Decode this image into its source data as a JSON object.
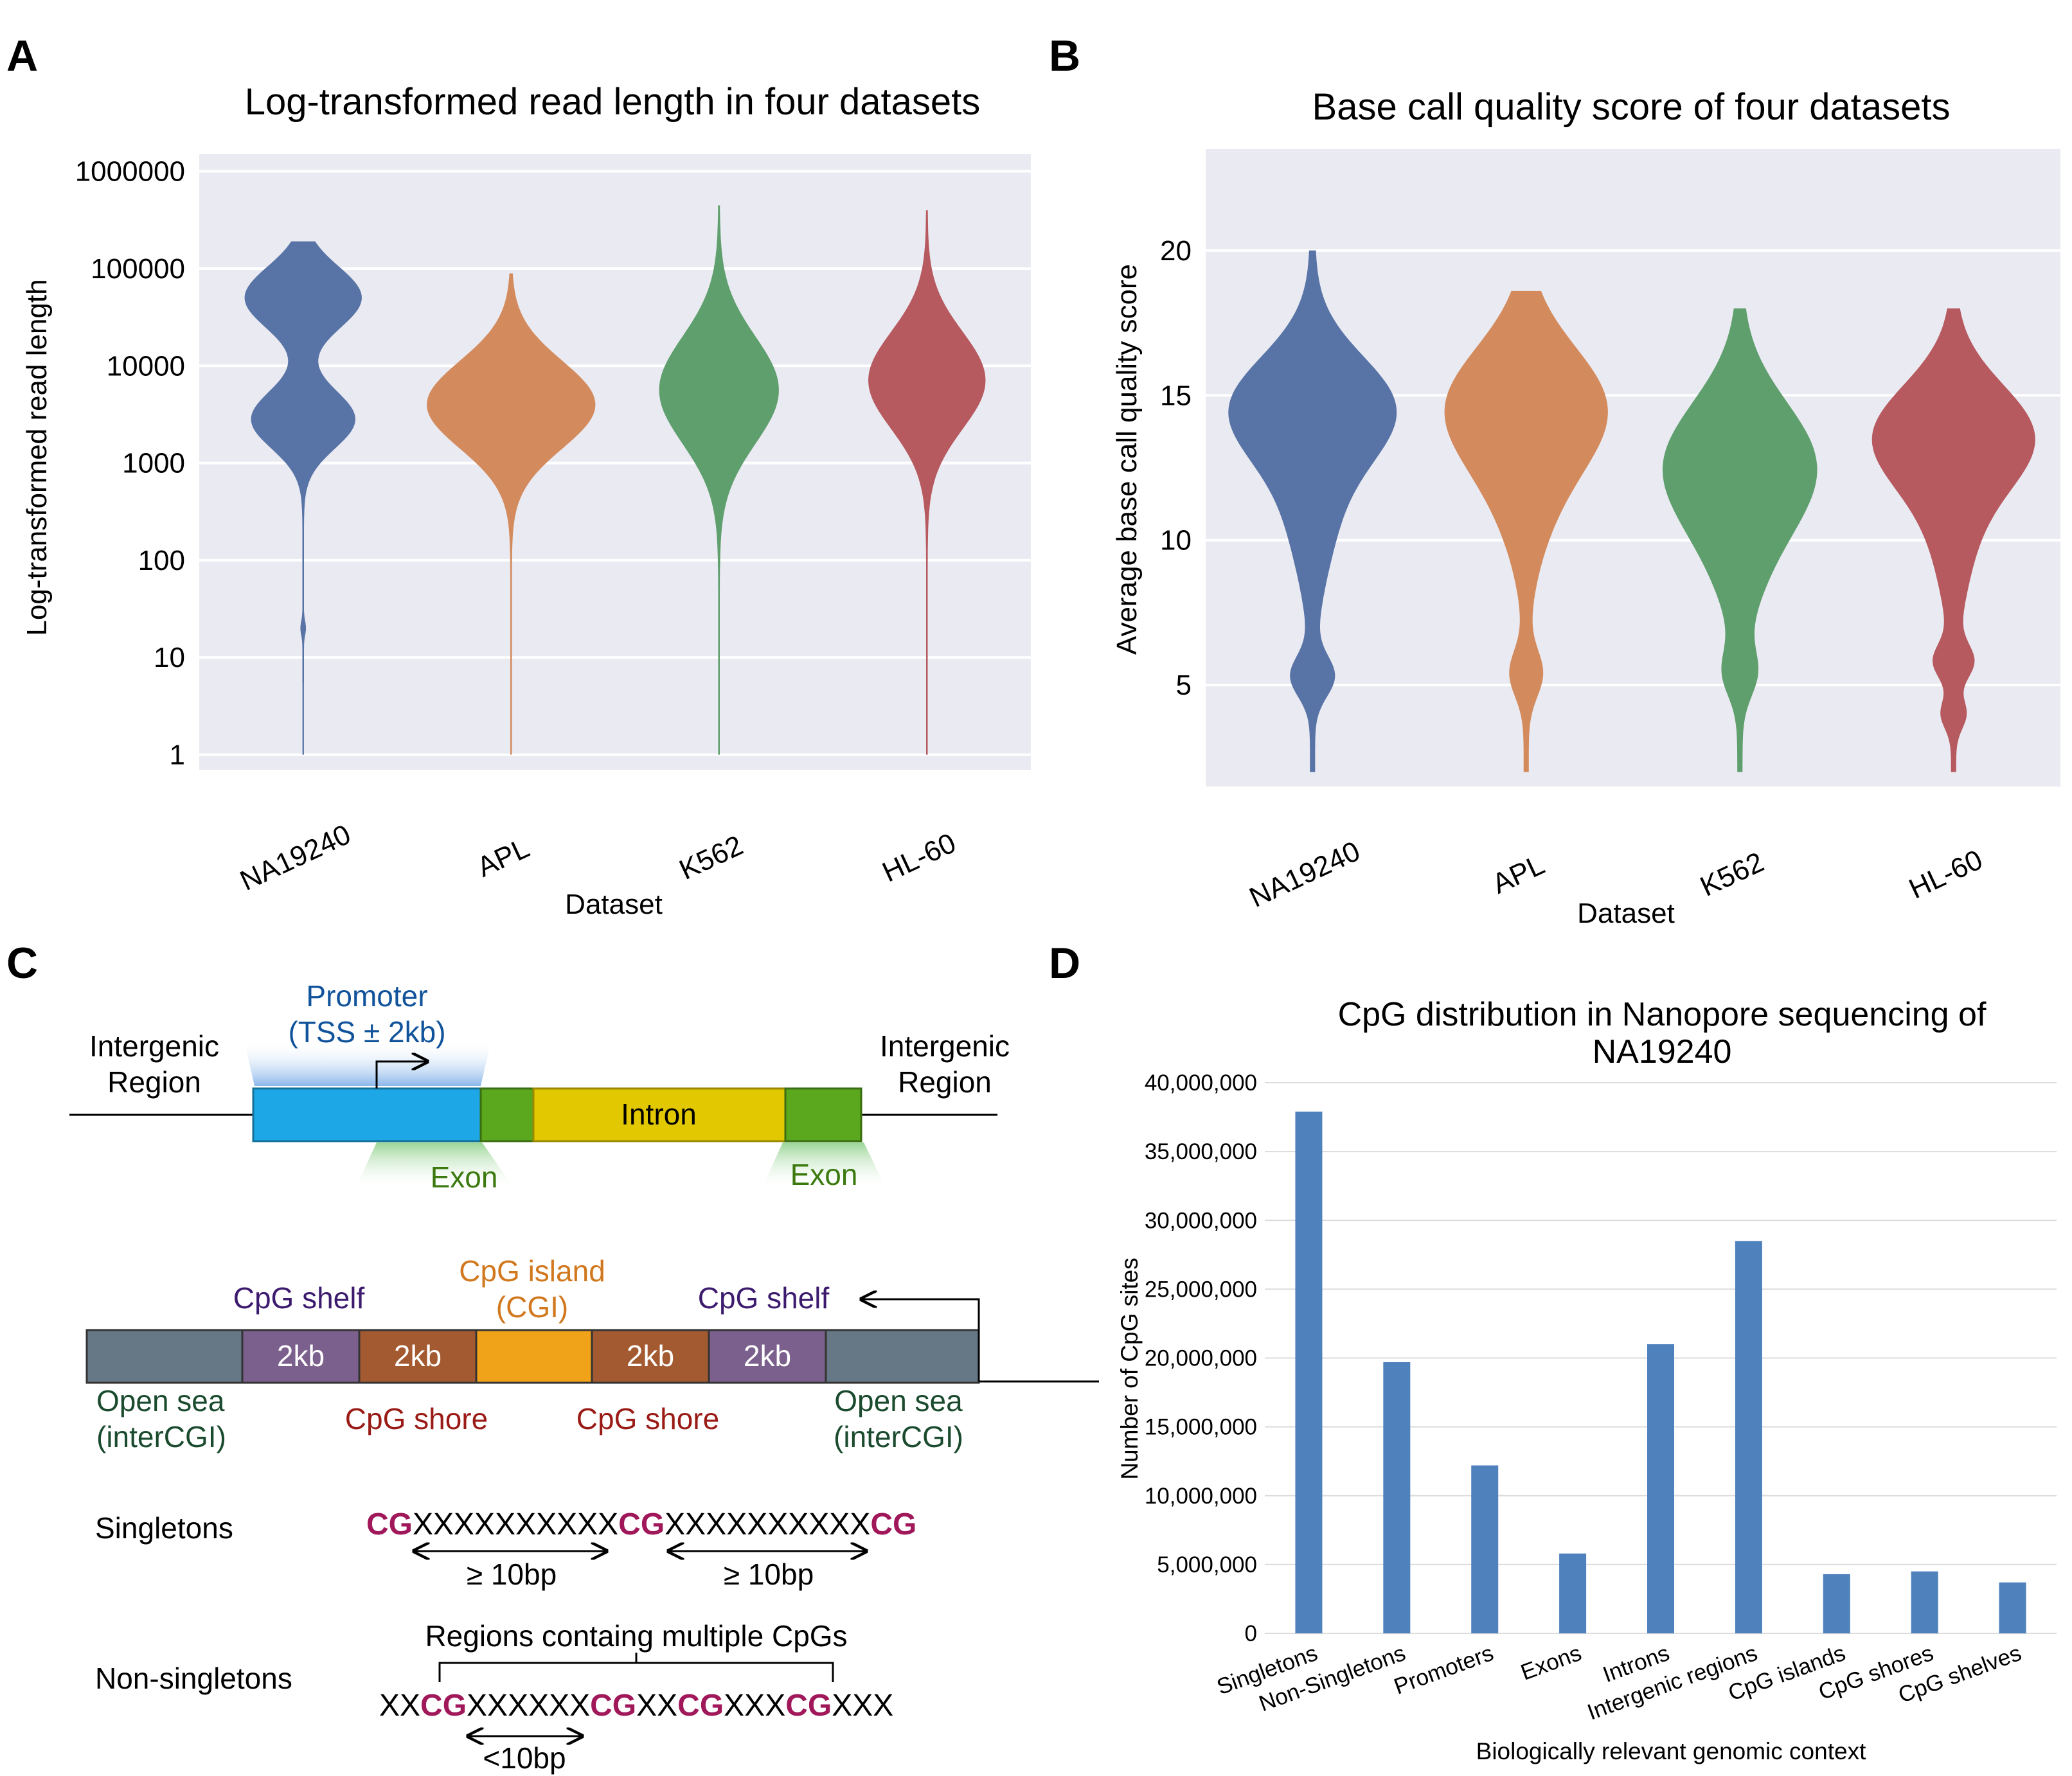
{
  "colors": {
    "blue": "#5874a6",
    "orange": "#d38b5d",
    "green": "#5f9f6d",
    "red": "#b65a5f",
    "panel_bg": "#eaeaf2",
    "bar": "#4f81bd",
    "promoter_blue": "#1ea7e6",
    "exon_green": "#5ba71e",
    "intron_yellow": "#e2c800",
    "sea_gray": "#667786",
    "shelf_purple": "#7b5f8c",
    "shore_brown": "#a35a30",
    "island_orange": "#f0a218",
    "cg_magenta": "#a0175a",
    "label_blue": "#10539b",
    "label_green": "#3c7a10",
    "label_orange": "#d1781e",
    "label_purple": "#3c1a6e",
    "label_darkred": "#9a1b16",
    "label_darkgreen": "#1b4b2e"
  },
  "panels": {
    "a": "A",
    "b": "B",
    "c": "C",
    "d": "D"
  },
  "chart_data": [
    {
      "type": "violin",
      "title": "Log-transformed read length in four datasets",
      "xlabel": "Dataset",
      "ylabel": "Log-transformed read length",
      "scale": "log10",
      "ylim": [
        0.7,
        1500000
      ],
      "yticks": [
        "1",
        "10",
        "100",
        "1000",
        "10000",
        "100000",
        "1000000"
      ],
      "categories": [
        "NA19240",
        "APL",
        "K562",
        "HL-60"
      ],
      "grid": true,
      "series": [
        {
          "category": "NA19240",
          "min": 1,
          "max": 190000,
          "modes": [
            3000,
            55000
          ]
        },
        {
          "category": "APL",
          "min": 1,
          "max": 90000,
          "modes": [
            4000
          ]
        },
        {
          "category": "K562",
          "min": 1,
          "max": 450000,
          "modes": [
            5000
          ]
        },
        {
          "category": "HL-60",
          "min": 1,
          "max": 400000,
          "modes": [
            5000
          ]
        }
      ]
    },
    {
      "type": "violin",
      "title": "Base call quality score of four datasets",
      "xlabel": "Dataset",
      "ylabel": "Average base call quality score",
      "ylim": [
        1.5,
        23.5
      ],
      "yticks": [
        "5",
        "10",
        "15",
        "20"
      ],
      "categories": [
        "NA19240",
        "APL",
        "K562",
        "HL-60"
      ],
      "grid": true,
      "series": [
        {
          "category": "NA19240",
          "min": 2,
          "max": 20,
          "modes": [
            14.5,
            5.5
          ]
        },
        {
          "category": "APL",
          "min": 2,
          "max": 18.5,
          "modes": [
            14.5,
            5.5
          ]
        },
        {
          "category": "K562",
          "min": 2,
          "max": 18,
          "modes": [
            12.5,
            5.5
          ]
        },
        {
          "category": "HL-60",
          "min": 2,
          "max": 18,
          "modes": [
            13.5,
            5.5,
            4
          ]
        }
      ]
    },
    {
      "type": "bar",
      "title": "CpG distribution in Nanopore sequencing of NA19240",
      "title_lines": [
        "CpG distribution in Nanopore sequencing of",
        "NA19240"
      ],
      "xlabel": "Biologically relevant genomic context",
      "ylabel": "Number of CpG sites",
      "ylim": [
        0,
        40000000
      ],
      "yticks": [
        "0",
        "5,000,000",
        "10,000,000",
        "15,000,000",
        "20,000,000",
        "25,000,000",
        "30,000,000",
        "35,000,000",
        "40,000,000"
      ],
      "categories": [
        "Singletons",
        "Non-Singletons",
        "Promoters",
        "Exons",
        "Introns",
        "Intergenic regions",
        "CpG islands",
        "CpG shores",
        "CpG shelves"
      ],
      "values": [
        37900000,
        19700000,
        12200000,
        5800000,
        21000000,
        28500000,
        4300000,
        4500000,
        3700000
      ],
      "grid": true
    }
  ],
  "diagram": {
    "intergenic_left": [
      "Intergenic",
      "Region"
    ],
    "intergenic_right": [
      "Intergenic",
      "Region"
    ],
    "promoter": [
      "Promoter",
      "(TSS ± 2kb)"
    ],
    "intron": "Intron",
    "exon_left": "Exon",
    "exon_right": "Exon",
    "shelf_left": "CpG shelf",
    "shelf_right": "CpG shelf",
    "island": [
      "CpG island",
      "(CGI)"
    ],
    "block_2kb": "2kb",
    "open_sea_left": [
      "Open sea",
      "(interCGI)"
    ],
    "open_sea_right": [
      "Open sea",
      "(interCGI)"
    ],
    "shore_left": "CpG shore",
    "shore_right": "CpG shore",
    "singletons": "Singletons",
    "non_singletons": "Non-singletons",
    "singleton_gap": "≥ 10bp",
    "multi_region": "Regions containg multiple CpGs",
    "multi_gap": "<10bp",
    "seq1": [
      [
        "CG",
        true
      ],
      [
        "XXXXXXXXXX",
        false
      ],
      [
        "CG",
        true
      ],
      [
        "XXXXXXXXXX",
        false
      ],
      [
        "CG",
        true
      ]
    ],
    "seq2": [
      [
        "XX",
        false
      ],
      [
        "CG",
        true
      ],
      [
        "XXXXXX",
        false
      ],
      [
        "CG",
        true
      ],
      [
        "XX",
        false
      ],
      [
        "CG",
        true
      ],
      [
        "XXX",
        false
      ],
      [
        "CG",
        true
      ],
      [
        "XXX",
        false
      ]
    ]
  }
}
